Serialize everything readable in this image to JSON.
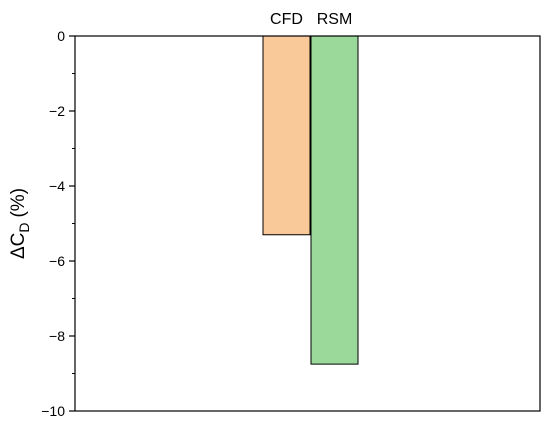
{
  "chart_data": {
    "type": "bar",
    "categories": [
      "CFD",
      "RSM"
    ],
    "values": [
      -5.3,
      -8.75
    ],
    "colors": [
      "#f9c99a",
      "#9ad99a"
    ],
    "ylabel": "ΔC",
    "ylabel_sub": "D",
    "ylabel_unit": "(%)",
    "ylim": [
      -10,
      0
    ],
    "yticks": [
      0,
      -2,
      -4,
      -6,
      -8,
      -10
    ],
    "ytick_labels": [
      "0",
      "−2",
      "−4",
      "−6",
      "−8",
      "−10"
    ],
    "grid": false
  }
}
